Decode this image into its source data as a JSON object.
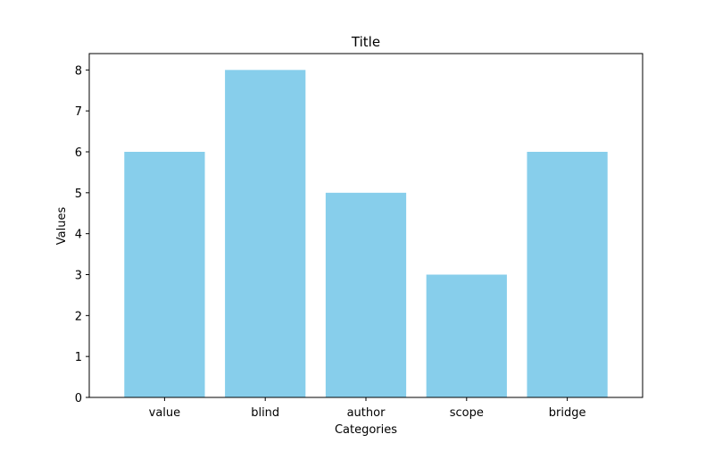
{
  "chart_data": {
    "type": "bar",
    "title": "Title",
    "xlabel": "Categories",
    "ylabel": "Values",
    "categories": [
      "value",
      "blind",
      "author",
      "scope",
      "bridge"
    ],
    "values": [
      6,
      8,
      5,
      3,
      6
    ],
    "ylim": [
      0,
      8.4
    ],
    "yticks": [
      0,
      1,
      2,
      3,
      4,
      5,
      6,
      7,
      8
    ],
    "grid": false,
    "bar_color": "#87ceeb"
  }
}
